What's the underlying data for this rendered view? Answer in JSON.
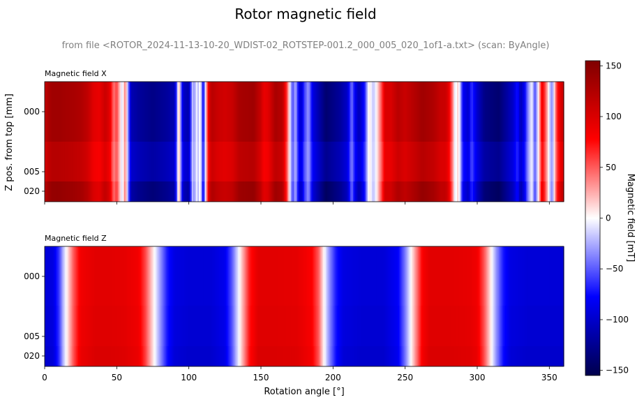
{
  "chart_data": {
    "type": "heatmap",
    "title": "Rotor magnetic field",
    "subtitle": "from file <ROTOR_2024-11-13-10-20_WDIST-02_ROTSTEP-001.2_000_005_020_1of1-a.txt> (scan: ByAngle)",
    "xlabel": "Rotation angle [°]",
    "ylabel": "Z pos. from top [mm]",
    "xlim": [
      0,
      360
    ],
    "x_ticks": [
      0,
      50,
      100,
      150,
      200,
      250,
      300,
      350
    ],
    "y_ticks": [
      "000",
      "005",
      "020"
    ],
    "colorbar": {
      "label": "Magnetic field [mT]",
      "range": [
        -155,
        155
      ],
      "ticks": [
        -150,
        -100,
        -50,
        0,
        50,
        100,
        150
      ],
      "colormap": "seismic"
    },
    "rows": [
      "000",
      "005",
      "020"
    ],
    "panels": [
      {
        "title": "Magnetic field X",
        "keypoints": [
          [
            0,
            110
          ],
          [
            2,
            125
          ],
          [
            5,
            135
          ],
          [
            10,
            135
          ],
          [
            20,
            130
          ],
          [
            26,
            125
          ],
          [
            30,
            115
          ],
          [
            34,
            95
          ],
          [
            38,
            90
          ],
          [
            42,
            110
          ],
          [
            45,
            95
          ],
          [
            48,
            40
          ],
          [
            50,
            60
          ],
          [
            52,
            20
          ],
          [
            53,
            5
          ],
          [
            54,
            -20
          ],
          [
            55,
            30
          ],
          [
            56,
            40
          ],
          [
            57,
            0
          ],
          [
            58,
            -40
          ],
          [
            60,
            -110
          ],
          [
            65,
            -120
          ],
          [
            75,
            -130
          ],
          [
            85,
            -120
          ],
          [
            90,
            -110
          ],
          [
            92,
            -40
          ],
          [
            93,
            50
          ],
          [
            94,
            -20
          ],
          [
            96,
            -100
          ],
          [
            100,
            -115
          ],
          [
            103,
            0
          ],
          [
            104,
            -60
          ],
          [
            105,
            20
          ],
          [
            106,
            -30
          ],
          [
            108,
            10
          ],
          [
            110,
            -90
          ],
          [
            112,
            20
          ],
          [
            114,
            100
          ],
          [
            116,
            120
          ],
          [
            120,
            110
          ],
          [
            125,
            105
          ],
          [
            130,
            110
          ],
          [
            135,
            130
          ],
          [
            145,
            135
          ],
          [
            150,
            110
          ],
          [
            152,
            90
          ],
          [
            155,
            95
          ],
          [
            160,
            130
          ],
          [
            165,
            120
          ],
          [
            168,
            60
          ],
          [
            170,
            0
          ],
          [
            172,
            -60
          ],
          [
            174,
            -20
          ],
          [
            176,
            -80
          ],
          [
            178,
            -100
          ],
          [
            180,
            -60
          ],
          [
            183,
            -30
          ],
          [
            186,
            -90
          ],
          [
            195,
            -140
          ],
          [
            205,
            -120
          ],
          [
            210,
            -100
          ],
          [
            213,
            -40
          ],
          [
            215,
            -80
          ],
          [
            218,
            -110
          ],
          [
            222,
            -70
          ],
          [
            225,
            10
          ],
          [
            228,
            -20
          ],
          [
            230,
            0
          ],
          [
            232,
            30
          ],
          [
            234,
            60
          ],
          [
            236,
            100
          ],
          [
            240,
            100
          ],
          [
            245,
            120
          ],
          [
            250,
            110
          ],
          [
            255,
            120
          ],
          [
            262,
            135
          ],
          [
            270,
            125
          ],
          [
            275,
            110
          ],
          [
            278,
            110
          ],
          [
            280,
            95
          ],
          [
            283,
            40
          ],
          [
            285,
            -20
          ],
          [
            286,
            20
          ],
          [
            288,
            -10
          ],
          [
            290,
            -80
          ],
          [
            294,
            -100
          ],
          [
            296,
            -60
          ],
          [
            300,
            -100
          ],
          [
            305,
            -130
          ],
          [
            315,
            -140
          ],
          [
            320,
            -120
          ],
          [
            325,
            -100
          ],
          [
            328,
            -70
          ],
          [
            330,
            -110
          ],
          [
            333,
            -80
          ],
          [
            335,
            -40
          ],
          [
            338,
            0
          ],
          [
            340,
            -60
          ],
          [
            343,
            20
          ],
          [
            345,
            90
          ],
          [
            348,
            40
          ],
          [
            350,
            -10
          ],
          [
            352,
            -40
          ],
          [
            355,
            60
          ],
          [
            358,
            100
          ],
          [
            360,
            110
          ]
        ],
        "row_scale": [
          1.0,
          0.9,
          1.05
        ]
      },
      {
        "title": "Magnetic field Z",
        "keypoints": [
          [
            0,
            -95
          ],
          [
            6,
            -90
          ],
          [
            10,
            -60
          ],
          [
            13,
            -20
          ],
          [
            16,
            10
          ],
          [
            20,
            50
          ],
          [
            25,
            85
          ],
          [
            35,
            95
          ],
          [
            45,
            95
          ],
          [
            55,
            93
          ],
          [
            65,
            85
          ],
          [
            70,
            55
          ],
          [
            75,
            10
          ],
          [
            80,
            -30
          ],
          [
            85,
            -70
          ],
          [
            90,
            -90
          ],
          [
            100,
            -95
          ],
          [
            115,
            -95
          ],
          [
            125,
            -85
          ],
          [
            130,
            -50
          ],
          [
            134,
            -10
          ],
          [
            138,
            30
          ],
          [
            142,
            70
          ],
          [
            148,
            95
          ],
          [
            160,
            95
          ],
          [
            175,
            93
          ],
          [
            185,
            80
          ],
          [
            190,
            50
          ],
          [
            193,
            10
          ],
          [
            197,
            -30
          ],
          [
            202,
            -70
          ],
          [
            207,
            -90
          ],
          [
            220,
            -95
          ],
          [
            235,
            -95
          ],
          [
            245,
            -80
          ],
          [
            250,
            -40
          ],
          [
            254,
            0
          ],
          [
            258,
            40
          ],
          [
            262,
            80
          ],
          [
            267,
            95
          ],
          [
            280,
            95
          ],
          [
            295,
            92
          ],
          [
            300,
            85
          ],
          [
            305,
            50
          ],
          [
            309,
            10
          ],
          [
            313,
            -30
          ],
          [
            318,
            -70
          ],
          [
            323,
            -90
          ],
          [
            335,
            -95
          ],
          [
            360,
            -95
          ]
        ],
        "row_scale": [
          1.0,
          1.02,
          1.05
        ]
      }
    ]
  }
}
